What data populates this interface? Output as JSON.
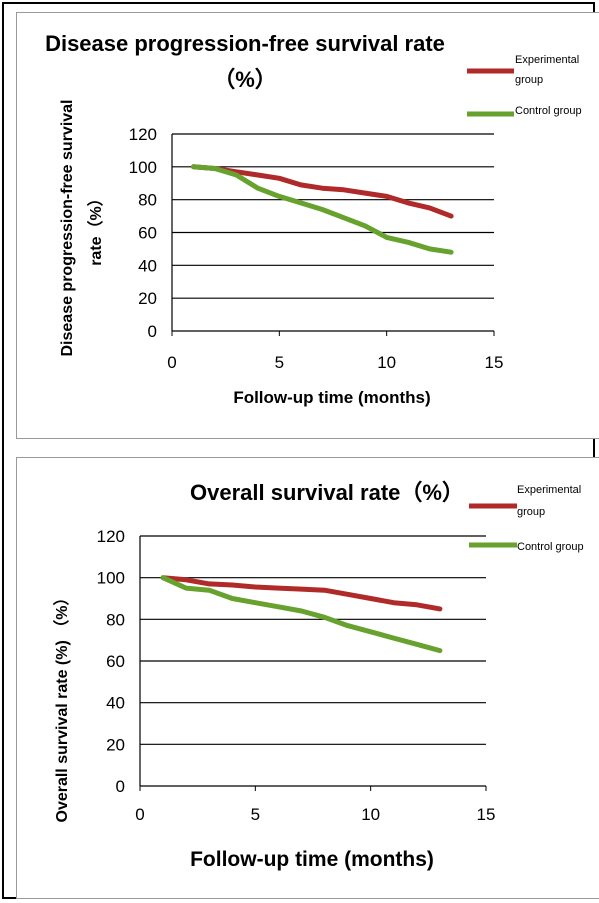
{
  "chart_data": [
    {
      "type": "line",
      "title": "Disease progression-free survival rate",
      "title_line2": "（%）",
      "xlabel": "Follow-up time (months)",
      "ylabel": [
        "Disease progression-free survival",
        "rate（%）"
      ],
      "xlim": [
        0,
        15
      ],
      "ylim": [
        0,
        120
      ],
      "x_ticks": [
        0,
        5,
        10,
        15
      ],
      "y_ticks": [
        0,
        20,
        40,
        60,
        80,
        100,
        120
      ],
      "grid": "horizontal",
      "legend_position": "top-right",
      "legend": [
        [
          "Experimental",
          "group"
        ],
        [
          "Control group"
        ]
      ],
      "series": [
        {
          "name": "Experimental group",
          "color": "#b02a2a",
          "x": [
            1,
            2,
            3,
            4,
            5,
            6,
            7,
            8,
            9,
            10,
            11,
            12,
            13
          ],
          "values": [
            100,
            99,
            97,
            95,
            93,
            89,
            87,
            86,
            84,
            82,
            78,
            75,
            70
          ]
        },
        {
          "name": "Control group",
          "color": "#66a22d",
          "x": [
            1,
            2,
            3,
            4,
            5,
            6,
            7,
            8,
            9,
            10,
            11,
            12,
            13
          ],
          "values": [
            100,
            99,
            95,
            87,
            82,
            78,
            74,
            69,
            64,
            57,
            54,
            50,
            48
          ]
        }
      ]
    },
    {
      "type": "line",
      "title": "Overall survival rate（%）",
      "xlabel": "Follow-up time (months)",
      "ylabel": [
        "Overall survival rate (%) （%）"
      ],
      "xlim": [
        0,
        15
      ],
      "ylim": [
        0,
        120
      ],
      "x_ticks": [
        0,
        5,
        10,
        15
      ],
      "y_ticks": [
        0,
        20,
        40,
        60,
        80,
        100,
        120
      ],
      "grid": "horizontal",
      "legend_position": "top-right",
      "legend": [
        [
          "Experimental",
          "group"
        ],
        [
          "Control group"
        ]
      ],
      "series": [
        {
          "name": "Experimental group",
          "color": "#b02a2a",
          "x": [
            1,
            2,
            3,
            4,
            5,
            6,
            7,
            8,
            9,
            10,
            11,
            12,
            13
          ],
          "values": [
            100,
            99,
            97,
            96.5,
            95.5,
            95,
            94.5,
            94,
            92,
            90,
            88,
            87,
            85
          ]
        },
        {
          "name": "Control group",
          "color": "#66a22d",
          "x": [
            1,
            2,
            3,
            4,
            5,
            6,
            7,
            8,
            9,
            10,
            11,
            12,
            13
          ],
          "values": [
            100,
            95,
            94,
            90,
            88,
            86,
            84,
            81,
            77,
            74,
            71,
            68,
            65
          ]
        }
      ]
    }
  ]
}
